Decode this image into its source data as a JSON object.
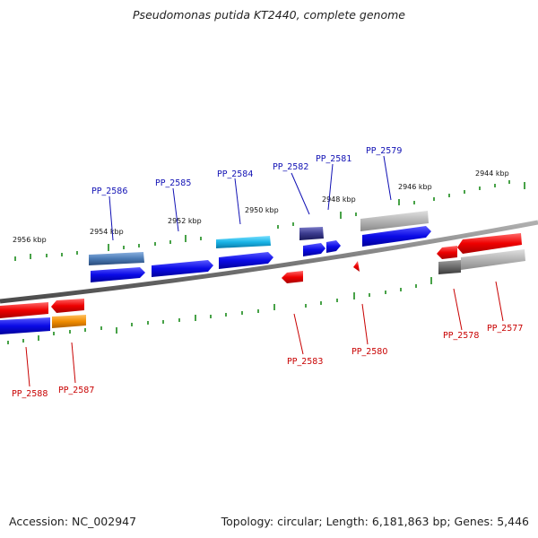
{
  "title": "Pseudomonas putida KT2440, complete genome",
  "footer": {
    "accession": "Accession: NC_002947",
    "summary": "Topology: circular; Length: 6,181,863 bp; Genes: 5,446"
  },
  "kbp_labels": [
    "2956 kbp",
    "2954 kbp",
    "2952 kbp",
    "2950 kbp",
    "2948 kbp",
    "2946 kbp",
    "2944 kbp"
  ],
  "forward_genes": [
    "PP_2586",
    "PP_2585",
    "PP_2584",
    "PP_2582",
    "PP_2581",
    "PP_2579"
  ],
  "reverse_genes": [
    "PP_2588",
    "PP_2587",
    "PP_2583",
    "PP_2580",
    "PP_2578",
    "PP_2577"
  ],
  "colors": {
    "cds_forward": "#0a0ae6",
    "cds_reverse": "#ee0000",
    "gene_gray": "#b4b4b4",
    "gene_steelblue": "#4a7ab4",
    "gene_cyan": "#19b4e6",
    "gene_purple": "#3a3a8c",
    "gene_orange": "#f08c00",
    "gene_darkgray": "#6a6a6a",
    "tick": "#1a8a1a",
    "backbone": "#7a7a7a"
  }
}
